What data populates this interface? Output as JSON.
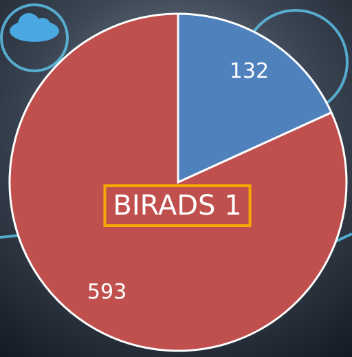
{
  "chart_data": {
    "type": "pie",
    "title": "BIRADS 1",
    "categories": [
      null,
      null
    ],
    "values": [
      132,
      593
    ],
    "colors": [
      "#4f81bd",
      "#c0504d"
    ]
  }
}
